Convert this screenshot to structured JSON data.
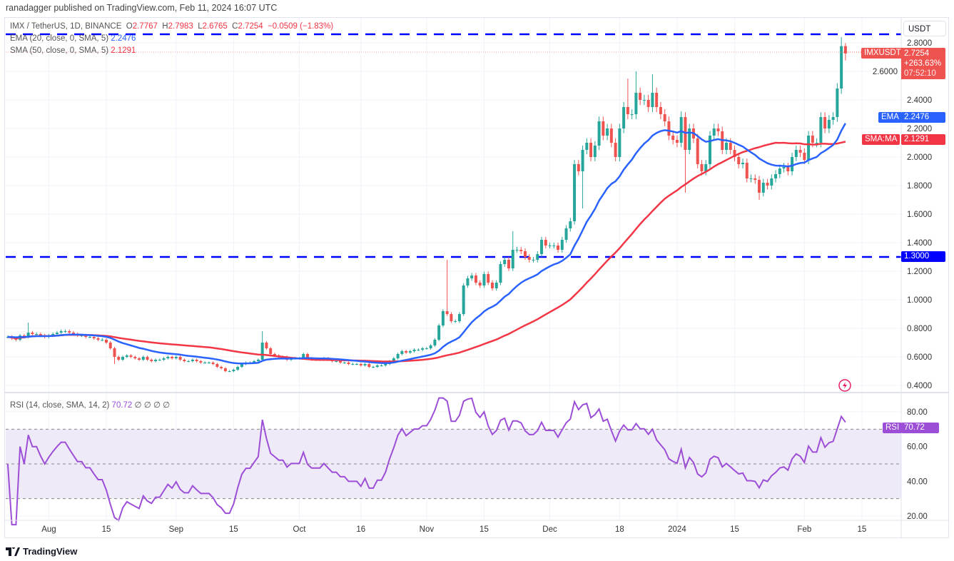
{
  "publisher_line": "ranadagger published on TradingView.com, Feb 11, 2024 16:07 UTC",
  "legend": {
    "symbol": "IMX / TetherUS, 1D, BINANCE",
    "o_label": "O",
    "o": "2.7767",
    "h_label": "H",
    "h": "2.7983",
    "l_label": "L",
    "l": "2.6765",
    "c_label": "C",
    "c": "2.7254",
    "change": "−0.0509 (−1.83%)",
    "ema_label": "EMA (20, close, 0, SMA, 5)",
    "ema_value": "2.2476",
    "sma_label": "SMA (50, close, 0, SMA, 5)",
    "sma_value": "2.1291"
  },
  "price_axis": {
    "currency": "USDT",
    "ticks": [
      "2.8000",
      "2.6000",
      "2.4000",
      "2.2000",
      "2.0000",
      "1.8000",
      "1.6000",
      "1.4000",
      "1.2000",
      "1.0000",
      "0.8000",
      "0.6000",
      "0.4000"
    ]
  },
  "tags": {
    "symbol": "IMXUSDT",
    "price": "2.7254",
    "change_pct": "+263.63%",
    "countdown": "07:52:10",
    "ema_name": "EMA",
    "ema_value": "2.2476",
    "sma_name": "SMA:MA",
    "sma_value": "2.1291",
    "level_low": "1.3000",
    "rsi_name": "RSI",
    "rsi_value": "70.72"
  },
  "rsi": {
    "legend": "RSI (14, close, SMA, 14, 2)",
    "value": "70.72",
    "na": "∅ ∅ ∅ ∅",
    "ticks": [
      "80.00",
      "60.00",
      "40.00",
      "20.00"
    ]
  },
  "time_axis": [
    {
      "label": "Aug",
      "date": "2023-08-01"
    },
    {
      "label": "15",
      "date": "2023-08-15"
    },
    {
      "label": "Sep",
      "date": "2023-09-01"
    },
    {
      "label": "15",
      "date": "2023-09-15"
    },
    {
      "label": "Oct",
      "date": "2023-10-01"
    },
    {
      "label": "16",
      "date": "2023-10-16"
    },
    {
      "label": "Nov",
      "date": "2023-11-01"
    },
    {
      "label": "15",
      "date": "2023-11-15"
    },
    {
      "label": "Dec",
      "date": "2023-12-01"
    },
    {
      "label": "18",
      "date": "2023-12-18"
    },
    {
      "label": "2024",
      "date": "2024-01-01"
    },
    {
      "label": "15",
      "date": "2024-01-15"
    },
    {
      "label": "Feb",
      "date": "2024-02-01"
    },
    {
      "label": "15",
      "date": "2024-02-15"
    }
  ],
  "logo_text": "TradingView",
  "colors": {
    "up": "#26a69a",
    "down": "#ef5350",
    "ema": "#2962ff",
    "sma": "#f23645",
    "rsi": "#9c4fd6",
    "levels": "#0000ff",
    "rsi_band": "#efeaf8"
  },
  "chart_data": {
    "type": "candlestick",
    "symbol": "IMXUSDT",
    "interval": "1D",
    "start_date": "2023-07-22",
    "closes": [
      0.74,
      0.73,
      0.72,
      0.75,
      0.74,
      0.77,
      0.76,
      0.76,
      0.75,
      0.74,
      0.75,
      0.76,
      0.77,
      0.78,
      0.78,
      0.77,
      0.76,
      0.75,
      0.75,
      0.74,
      0.74,
      0.73,
      0.72,
      0.72,
      0.7,
      0.66,
      0.6,
      0.58,
      0.6,
      0.61,
      0.6,
      0.59,
      0.58,
      0.6,
      0.58,
      0.57,
      0.58,
      0.58,
      0.59,
      0.6,
      0.59,
      0.6,
      0.58,
      0.57,
      0.57,
      0.58,
      0.57,
      0.56,
      0.56,
      0.56,
      0.55,
      0.53,
      0.52,
      0.5,
      0.5,
      0.51,
      0.53,
      0.55,
      0.56,
      0.56,
      0.57,
      0.58,
      0.7,
      0.66,
      0.62,
      0.61,
      0.6,
      0.6,
      0.58,
      0.59,
      0.59,
      0.59,
      0.62,
      0.59,
      0.58,
      0.58,
      0.58,
      0.59,
      0.58,
      0.57,
      0.57,
      0.56,
      0.56,
      0.55,
      0.55,
      0.55,
      0.54,
      0.55,
      0.53,
      0.53,
      0.54,
      0.54,
      0.55,
      0.57,
      0.59,
      0.62,
      0.64,
      0.63,
      0.64,
      0.65,
      0.65,
      0.66,
      0.66,
      0.68,
      0.72,
      0.82,
      0.92,
      0.9,
      0.85,
      0.85,
      0.9,
      1.1,
      1.15,
      1.17,
      1.12,
      1.1,
      1.18,
      1.12,
      1.08,
      1.12,
      1.25,
      1.28,
      1.22,
      1.35,
      1.35,
      1.34,
      1.3,
      1.28,
      1.28,
      1.32,
      1.42,
      1.38,
      1.38,
      1.38,
      1.35,
      1.42,
      1.5,
      1.55,
      1.95,
      1.9,
      2.05,
      2.1,
      2.0,
      2.08,
      2.25,
      2.15,
      2.2,
      2.1,
      2.0,
      2.2,
      2.35,
      2.3,
      2.3,
      2.45,
      2.4,
      2.4,
      2.35,
      2.45,
      2.35,
      2.3,
      2.25,
      2.15,
      2.12,
      2.1,
      2.28,
      2.05,
      2.2,
      2.13,
      1.95,
      1.9,
      1.95,
      2.15,
      2.2,
      2.18,
      2.05,
      2.1,
      2.05,
      2.0,
      1.95,
      1.96,
      1.85,
      1.85,
      1.84,
      1.75,
      1.82,
      1.8,
      1.85,
      1.88,
      1.92,
      1.93,
      1.9,
      2.0,
      2.05,
      2.03,
      1.98,
      2.15,
      2.1,
      2.1,
      2.28,
      2.2,
      2.26,
      2.28,
      2.48,
      2.7767,
      2.7254
    ],
    "high_overrides": {
      "2023-07-27": 0.84,
      "2023-09-22": 0.78,
      "2023-11-06": 1.28,
      "2023-11-22": 1.48,
      "2023-12-20": 2.55,
      "2023-12-22": 2.6,
      "2023-12-26": 2.58,
      "2024-01-02": 2.32,
      "2024-02-10": 2.84,
      "2024-02-11": 2.7983
    },
    "low_overrides": {
      "2023-08-17": 0.55,
      "2023-12-09": 1.64,
      "2024-01-03": 1.75,
      "2024-01-21": 1.7,
      "2024-02-11": 2.6765
    },
    "horizontal_levels": [
      2.86,
      1.3
    ],
    "indicators": {
      "ema_length": 20,
      "sma_length": 50,
      "rsi_length": 14,
      "rsi_bands": [
        70,
        50,
        30
      ]
    },
    "price_range": [
      0.35,
      2.95
    ],
    "rsi_range": [
      15,
      88
    ]
  }
}
